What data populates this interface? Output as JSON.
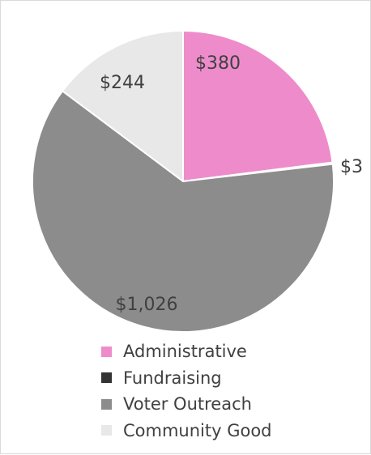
{
  "chart_data": {
    "type": "pie",
    "series": [
      {
        "name": "Administrative",
        "value": 380,
        "label": "$380",
        "color": "#ee8ccb"
      },
      {
        "name": "Fundraising",
        "value": 3,
        "label": "$3",
        "color": "#333333"
      },
      {
        "name": "Voter Outreach",
        "value": 1026,
        "label": "$1,026",
        "color": "#8c8c8c"
      },
      {
        "name": "Community Good",
        "value": 244,
        "label": "$244",
        "color": "#e8e8e8"
      }
    ],
    "start_angle_degrees": 0,
    "direction": "clockwise",
    "legend_placement": "bottom",
    "title": ""
  }
}
